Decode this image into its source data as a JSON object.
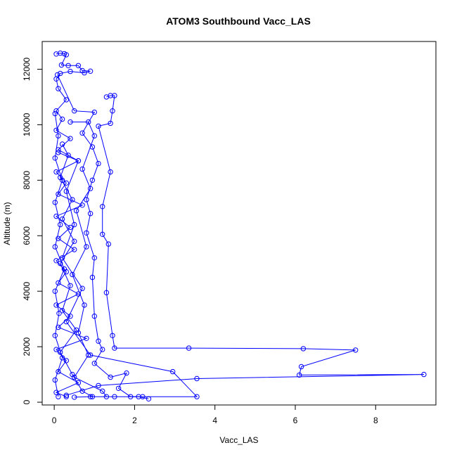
{
  "chart_data": {
    "type": "scatter",
    "title": "ATOM3 Southbound Vacc_LAS",
    "xlabel": "Vacc_LAS",
    "ylabel": "Altitude (m)",
    "xlim": [
      -0.3,
      9.5
    ],
    "ylim": [
      -100,
      13000
    ],
    "xticks": [
      0,
      2,
      4,
      6,
      8
    ],
    "yticks": [
      0,
      2000,
      4000,
      6000,
      8000,
      10000,
      12000
    ],
    "grid": false,
    "legend": "none",
    "color": "#0000ff",
    "series": [
      {
        "values": [
          {
            "x": 0.05,
            "y": 12550
          },
          {
            "x": 0.15,
            "y": 12580
          },
          {
            "x": 0.25,
            "y": 12560
          },
          {
            "x": 0.3,
            "y": 12520
          },
          {
            "x": 0.18,
            "y": 12150
          },
          {
            "x": 0.35,
            "y": 12130
          },
          {
            "x": 0.6,
            "y": 12130
          },
          {
            "x": 0.7,
            "y": 11950
          },
          {
            "x": 0.9,
            "y": 11930
          },
          {
            "x": 0.75,
            "y": 11870
          },
          {
            "x": 0.4,
            "y": 11920
          },
          {
            "x": 0.15,
            "y": 11850
          },
          {
            "x": 0.05,
            "y": 11650
          },
          {
            "x": 0.1,
            "y": 11300
          },
          {
            "x": 0.3,
            "y": 10900
          },
          {
            "x": 0.05,
            "y": 10500
          },
          {
            "x": 0.2,
            "y": 10200
          },
          {
            "x": 0.05,
            "y": 9800
          },
          {
            "x": 0.4,
            "y": 9500
          },
          {
            "x": 0.1,
            "y": 9100
          },
          {
            "x": 0.6,
            "y": 8700
          },
          {
            "x": 0.05,
            "y": 8300
          },
          {
            "x": 0.3,
            "y": 7900
          },
          {
            "x": 0.1,
            "y": 7500
          },
          {
            "x": 0.7,
            "y": 7100
          },
          {
            "x": 0.05,
            "y": 6700
          },
          {
            "x": 0.4,
            "y": 6300
          },
          {
            "x": 0.1,
            "y": 5900
          },
          {
            "x": 0.5,
            "y": 5500
          },
          {
            "x": 0.05,
            "y": 5100
          },
          {
            "x": 0.3,
            "y": 4700
          },
          {
            "x": 0.1,
            "y": 4300
          },
          {
            "x": 0.6,
            "y": 3900
          },
          {
            "x": 0.05,
            "y": 3500
          },
          {
            "x": 0.4,
            "y": 3100
          },
          {
            "x": 0.1,
            "y": 2700
          },
          {
            "x": 0.8,
            "y": 2300
          },
          {
            "x": 0.05,
            "y": 1900
          },
          {
            "x": 0.3,
            "y": 1500
          },
          {
            "x": 0.1,
            "y": 1100
          },
          {
            "x": 0.6,
            "y": 700
          },
          {
            "x": 0.05,
            "y": 350
          },
          {
            "x": 0.3,
            "y": 200
          }
        ]
      },
      {
        "values": [
          {
            "x": 1.3,
            "y": 11000
          },
          {
            "x": 1.4,
            "y": 11050
          },
          {
            "x": 1.5,
            "y": 11050
          },
          {
            "x": 1.45,
            "y": 10500
          },
          {
            "x": 1.4,
            "y": 10050
          },
          {
            "x": 1.1,
            "y": 9950
          },
          {
            "x": 1.4,
            "y": 8300
          },
          {
            "x": 1.2,
            "y": 7050
          },
          {
            "x": 1.2,
            "y": 6050
          },
          {
            "x": 1.35,
            "y": 5700
          },
          {
            "x": 1.3,
            "y": 3950
          },
          {
            "x": 1.45,
            "y": 2400
          },
          {
            "x": 1.5,
            "y": 1950
          },
          {
            "x": 3.35,
            "y": 1950
          },
          {
            "x": 6.2,
            "y": 1930
          },
          {
            "x": 7.5,
            "y": 1880
          },
          {
            "x": 6.15,
            "y": 1280
          },
          {
            "x": 6.1,
            "y": 980
          },
          {
            "x": 9.2,
            "y": 1000
          },
          {
            "x": 3.55,
            "y": 850
          },
          {
            "x": 1.1,
            "y": 600
          },
          {
            "x": 0.3,
            "y": 250
          }
        ]
      },
      {
        "values": [
          {
            "x": 0.08,
            "y": 11800
          },
          {
            "x": 0.5,
            "y": 10500
          },
          {
            "x": 1.0,
            "y": 10450
          },
          {
            "x": 0.7,
            "y": 9700
          },
          {
            "x": 0.95,
            "y": 9200
          },
          {
            "x": 1.1,
            "y": 8600
          },
          {
            "x": 0.95,
            "y": 8000
          },
          {
            "x": 0.8,
            "y": 7300
          },
          {
            "x": 0.9,
            "y": 6800
          },
          {
            "x": 0.8,
            "y": 6100
          },
          {
            "x": 1.0,
            "y": 5200
          },
          {
            "x": 0.95,
            "y": 4500
          },
          {
            "x": 1.0,
            "y": 3100
          },
          {
            "x": 1.1,
            "y": 2200
          },
          {
            "x": 1.2,
            "y": 1900
          },
          {
            "x": 1.0,
            "y": 1400
          },
          {
            "x": 1.4,
            "y": 900
          },
          {
            "x": 1.8,
            "y": 1050
          },
          {
            "x": 1.6,
            "y": 500
          },
          {
            "x": 1.9,
            "y": 200
          },
          {
            "x": 2.1,
            "y": 200
          },
          {
            "x": 2.35,
            "y": 120
          }
        ]
      },
      {
        "values": [
          {
            "x": 0.1,
            "y": 9000
          },
          {
            "x": 0.6,
            "y": 8700
          },
          {
            "x": 0.3,
            "y": 7600
          },
          {
            "x": 0.5,
            "y": 6400
          },
          {
            "x": 0.2,
            "y": 5200
          },
          {
            "x": 0.7,
            "y": 4100
          },
          {
            "x": 0.3,
            "y": 2900
          },
          {
            "x": 0.9,
            "y": 1700
          },
          {
            "x": 2.95,
            "y": 1100
          },
          {
            "x": 3.55,
            "y": 200
          },
          {
            "x": 2.2,
            "y": 200
          },
          {
            "x": 1.5,
            "y": 200
          },
          {
            "x": 0.9,
            "y": 200
          },
          {
            "x": 0.5,
            "y": 180
          }
        ]
      },
      {
        "values": [
          {
            "x": 0.02,
            "y": 10400
          },
          {
            "x": 0.1,
            "y": 9600
          },
          {
            "x": 0.02,
            "y": 8800
          },
          {
            "x": 0.2,
            "y": 8000
          },
          {
            "x": 0.02,
            "y": 7200
          },
          {
            "x": 0.15,
            "y": 6400
          },
          {
            "x": 0.02,
            "y": 5600
          },
          {
            "x": 0.25,
            "y": 4800
          },
          {
            "x": 0.02,
            "y": 4000
          },
          {
            "x": 0.12,
            "y": 3200
          },
          {
            "x": 0.02,
            "y": 2400
          },
          {
            "x": 0.2,
            "y": 1600
          },
          {
            "x": 0.02,
            "y": 800
          },
          {
            "x": 0.1,
            "y": 200
          }
        ]
      },
      {
        "values": [
          {
            "x": 0.4,
            "y": 10100
          },
          {
            "x": 0.85,
            "y": 10100
          },
          {
            "x": 1.0,
            "y": 9600
          },
          {
            "x": 0.7,
            "y": 8400
          },
          {
            "x": 0.9,
            "y": 7700
          },
          {
            "x": 0.55,
            "y": 6900
          },
          {
            "x": 0.8,
            "y": 5600
          },
          {
            "x": 0.45,
            "y": 4600
          },
          {
            "x": 0.75,
            "y": 3500
          },
          {
            "x": 0.6,
            "y": 2500
          },
          {
            "x": 0.85,
            "y": 1700
          },
          {
            "x": 0.5,
            "y": 900
          },
          {
            "x": 1.2,
            "y": 400
          },
          {
            "x": 1.3,
            "y": 200
          }
        ]
      },
      {
        "values": [
          {
            "x": 0.2,
            "y": 9300
          },
          {
            "x": 0.35,
            "y": 8900
          },
          {
            "x": 0.15,
            "y": 8100
          },
          {
            "x": 0.45,
            "y": 7300
          },
          {
            "x": 0.2,
            "y": 6600
          },
          {
            "x": 0.5,
            "y": 5800
          },
          {
            "x": 0.15,
            "y": 5000
          },
          {
            "x": 0.4,
            "y": 4200
          },
          {
            "x": 0.2,
            "y": 3300
          },
          {
            "x": 0.55,
            "y": 2600
          },
          {
            "x": 0.15,
            "y": 1800
          },
          {
            "x": 0.45,
            "y": 1000
          },
          {
            "x": 0.7,
            "y": 400
          },
          {
            "x": 0.95,
            "y": 200
          }
        ]
      }
    ]
  }
}
